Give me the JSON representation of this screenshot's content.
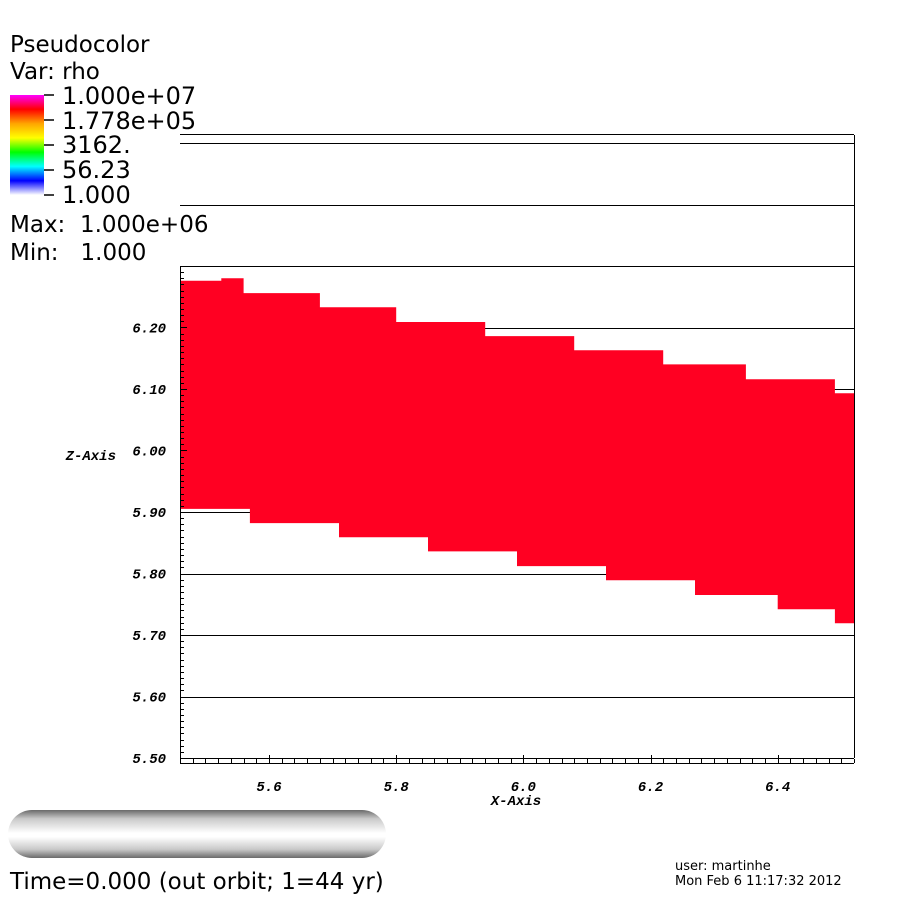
{
  "legend": {
    "title": "Pseudocolor",
    "var_label": "Var: rho",
    "labels": [
      "1.000e+07",
      "1.778e+05",
      "3162.",
      "56.23",
      "1.000"
    ],
    "max_label": "Max:",
    "max_value": "1.000e+06",
    "min_label": "Min:",
    "min_value": "1.000",
    "colors": [
      "#ff00ff",
      "#ff0000",
      "#ffa500",
      "#ffff00",
      "#00ff00",
      "#00ffff",
      "#0000ff",
      "#ffffff"
    ]
  },
  "footer": {
    "time_text": "Time=0.000 (out orbit; 1=44 yr)",
    "user_text": "user: martinhe",
    "date_text": "Mon Feb  6 11:17:32 2012"
  },
  "chart_data": {
    "type": "heatmap",
    "xlabel": "X-Axis",
    "ylabel": "Z-Axis",
    "xlim": [
      5.46,
      6.52
    ],
    "ylim": [
      5.5,
      6.3
    ],
    "x_ticks": [
      "5.6",
      "5.8",
      "6.0",
      "6.2",
      "6.4"
    ],
    "y_ticks": [
      "5.50",
      "5.60",
      "5.70",
      "5.80",
      "5.90",
      "6.00",
      "6.10",
      "6.20"
    ],
    "grid": true,
    "fill_color": "#ff0022",
    "region_top": [
      [
        5.46,
        6.276
      ],
      [
        5.525,
        6.276
      ],
      [
        5.525,
        6.28
      ],
      [
        5.56,
        6.28
      ],
      [
        5.56,
        6.256
      ],
      [
        5.68,
        6.256
      ],
      [
        5.68,
        6.233
      ],
      [
        5.8,
        6.233
      ],
      [
        5.8,
        6.209
      ],
      [
        5.94,
        6.209
      ],
      [
        5.94,
        6.186
      ],
      [
        6.08,
        6.186
      ],
      [
        6.08,
        6.163
      ],
      [
        6.22,
        6.163
      ],
      [
        6.22,
        6.14
      ],
      [
        6.35,
        6.14
      ],
      [
        6.35,
        6.116
      ],
      [
        6.49,
        6.116
      ],
      [
        6.49,
        6.093
      ],
      [
        6.52,
        6.093
      ]
    ],
    "region_bottom": [
      [
        6.52,
        5.719
      ],
      [
        6.49,
        5.719
      ],
      [
        6.49,
        5.742
      ],
      [
        6.4,
        5.742
      ],
      [
        6.4,
        5.765
      ],
      [
        6.27,
        5.765
      ],
      [
        6.27,
        5.789
      ],
      [
        6.13,
        5.789
      ],
      [
        6.13,
        5.812
      ],
      [
        5.99,
        5.812
      ],
      [
        5.99,
        5.836
      ],
      [
        5.85,
        5.836
      ],
      [
        5.85,
        5.859
      ],
      [
        5.71,
        5.859
      ],
      [
        5.71,
        5.882
      ],
      [
        5.57,
        5.882
      ],
      [
        5.57,
        5.905
      ],
      [
        5.46,
        5.905
      ]
    ]
  }
}
